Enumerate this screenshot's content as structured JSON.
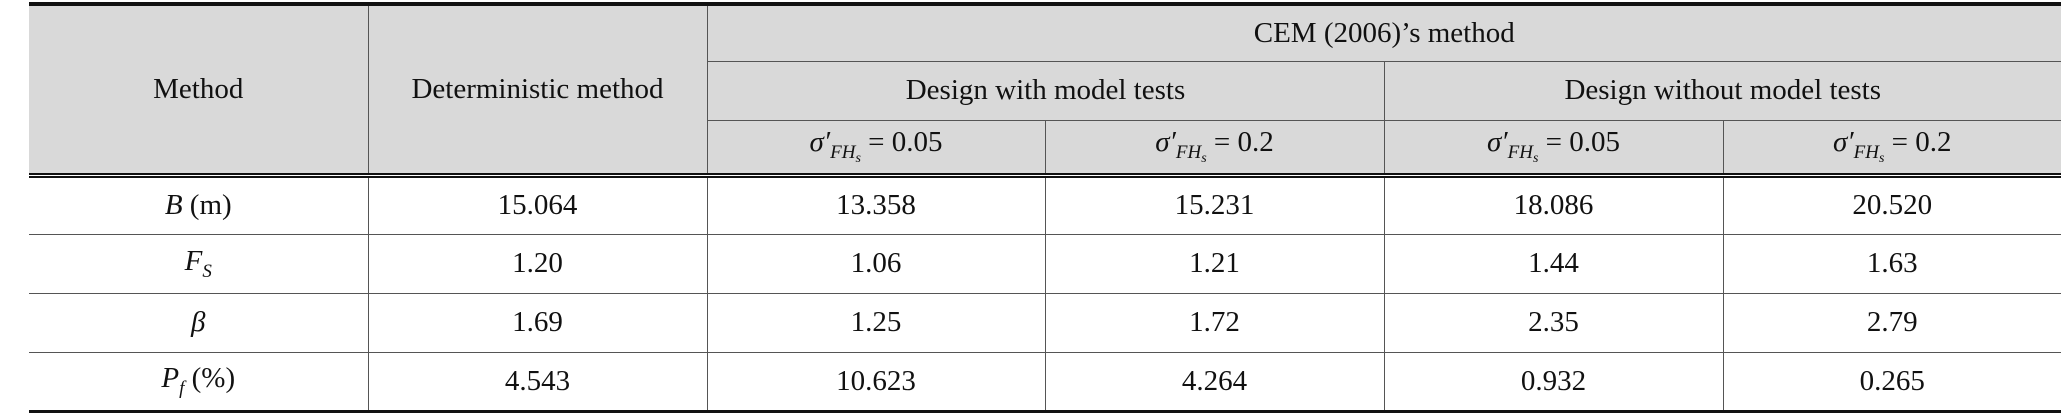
{
  "table": {
    "header": {
      "method": "Method",
      "deterministic": "Deterministic method",
      "cem": "CEM (2006)’s method",
      "with_tests": "Design with model tests",
      "without_tests": "Design without model tests",
      "cases": [
        {
          "symbol": "σ′",
          "sub": "FH",
          "subsub": "s",
          "rest": "= 0.05"
        },
        {
          "symbol": "σ′",
          "sub": "FH",
          "subsub": "s",
          "rest": "= 0.2"
        },
        {
          "symbol": "σ′",
          "sub": "FH",
          "subsub": "s",
          "rest": "= 0.05"
        },
        {
          "symbol": "σ′",
          "sub": "FH",
          "subsub": "s",
          "rest": "= 0.2"
        }
      ]
    },
    "rows": [
      {
        "symbol": "B",
        "sub": "",
        "unit": "(m)",
        "cells": [
          "15.064",
          "13.358",
          "15.231",
          "18.086",
          "20.520"
        ]
      },
      {
        "symbol": "F",
        "sub": "S",
        "unit": "",
        "cells": [
          "1.20",
          "1.06",
          "1.21",
          "1.44",
          "1.63"
        ]
      },
      {
        "symbol": "β",
        "sub": "",
        "unit": "",
        "cells": [
          "1.69",
          "1.25",
          "1.72",
          "2.35",
          "2.79"
        ]
      },
      {
        "symbol": "P",
        "sub": "f",
        "unit": "(%)",
        "cells": [
          "4.543",
          "10.623",
          "4.264",
          "0.932",
          "0.265"
        ]
      }
    ]
  }
}
